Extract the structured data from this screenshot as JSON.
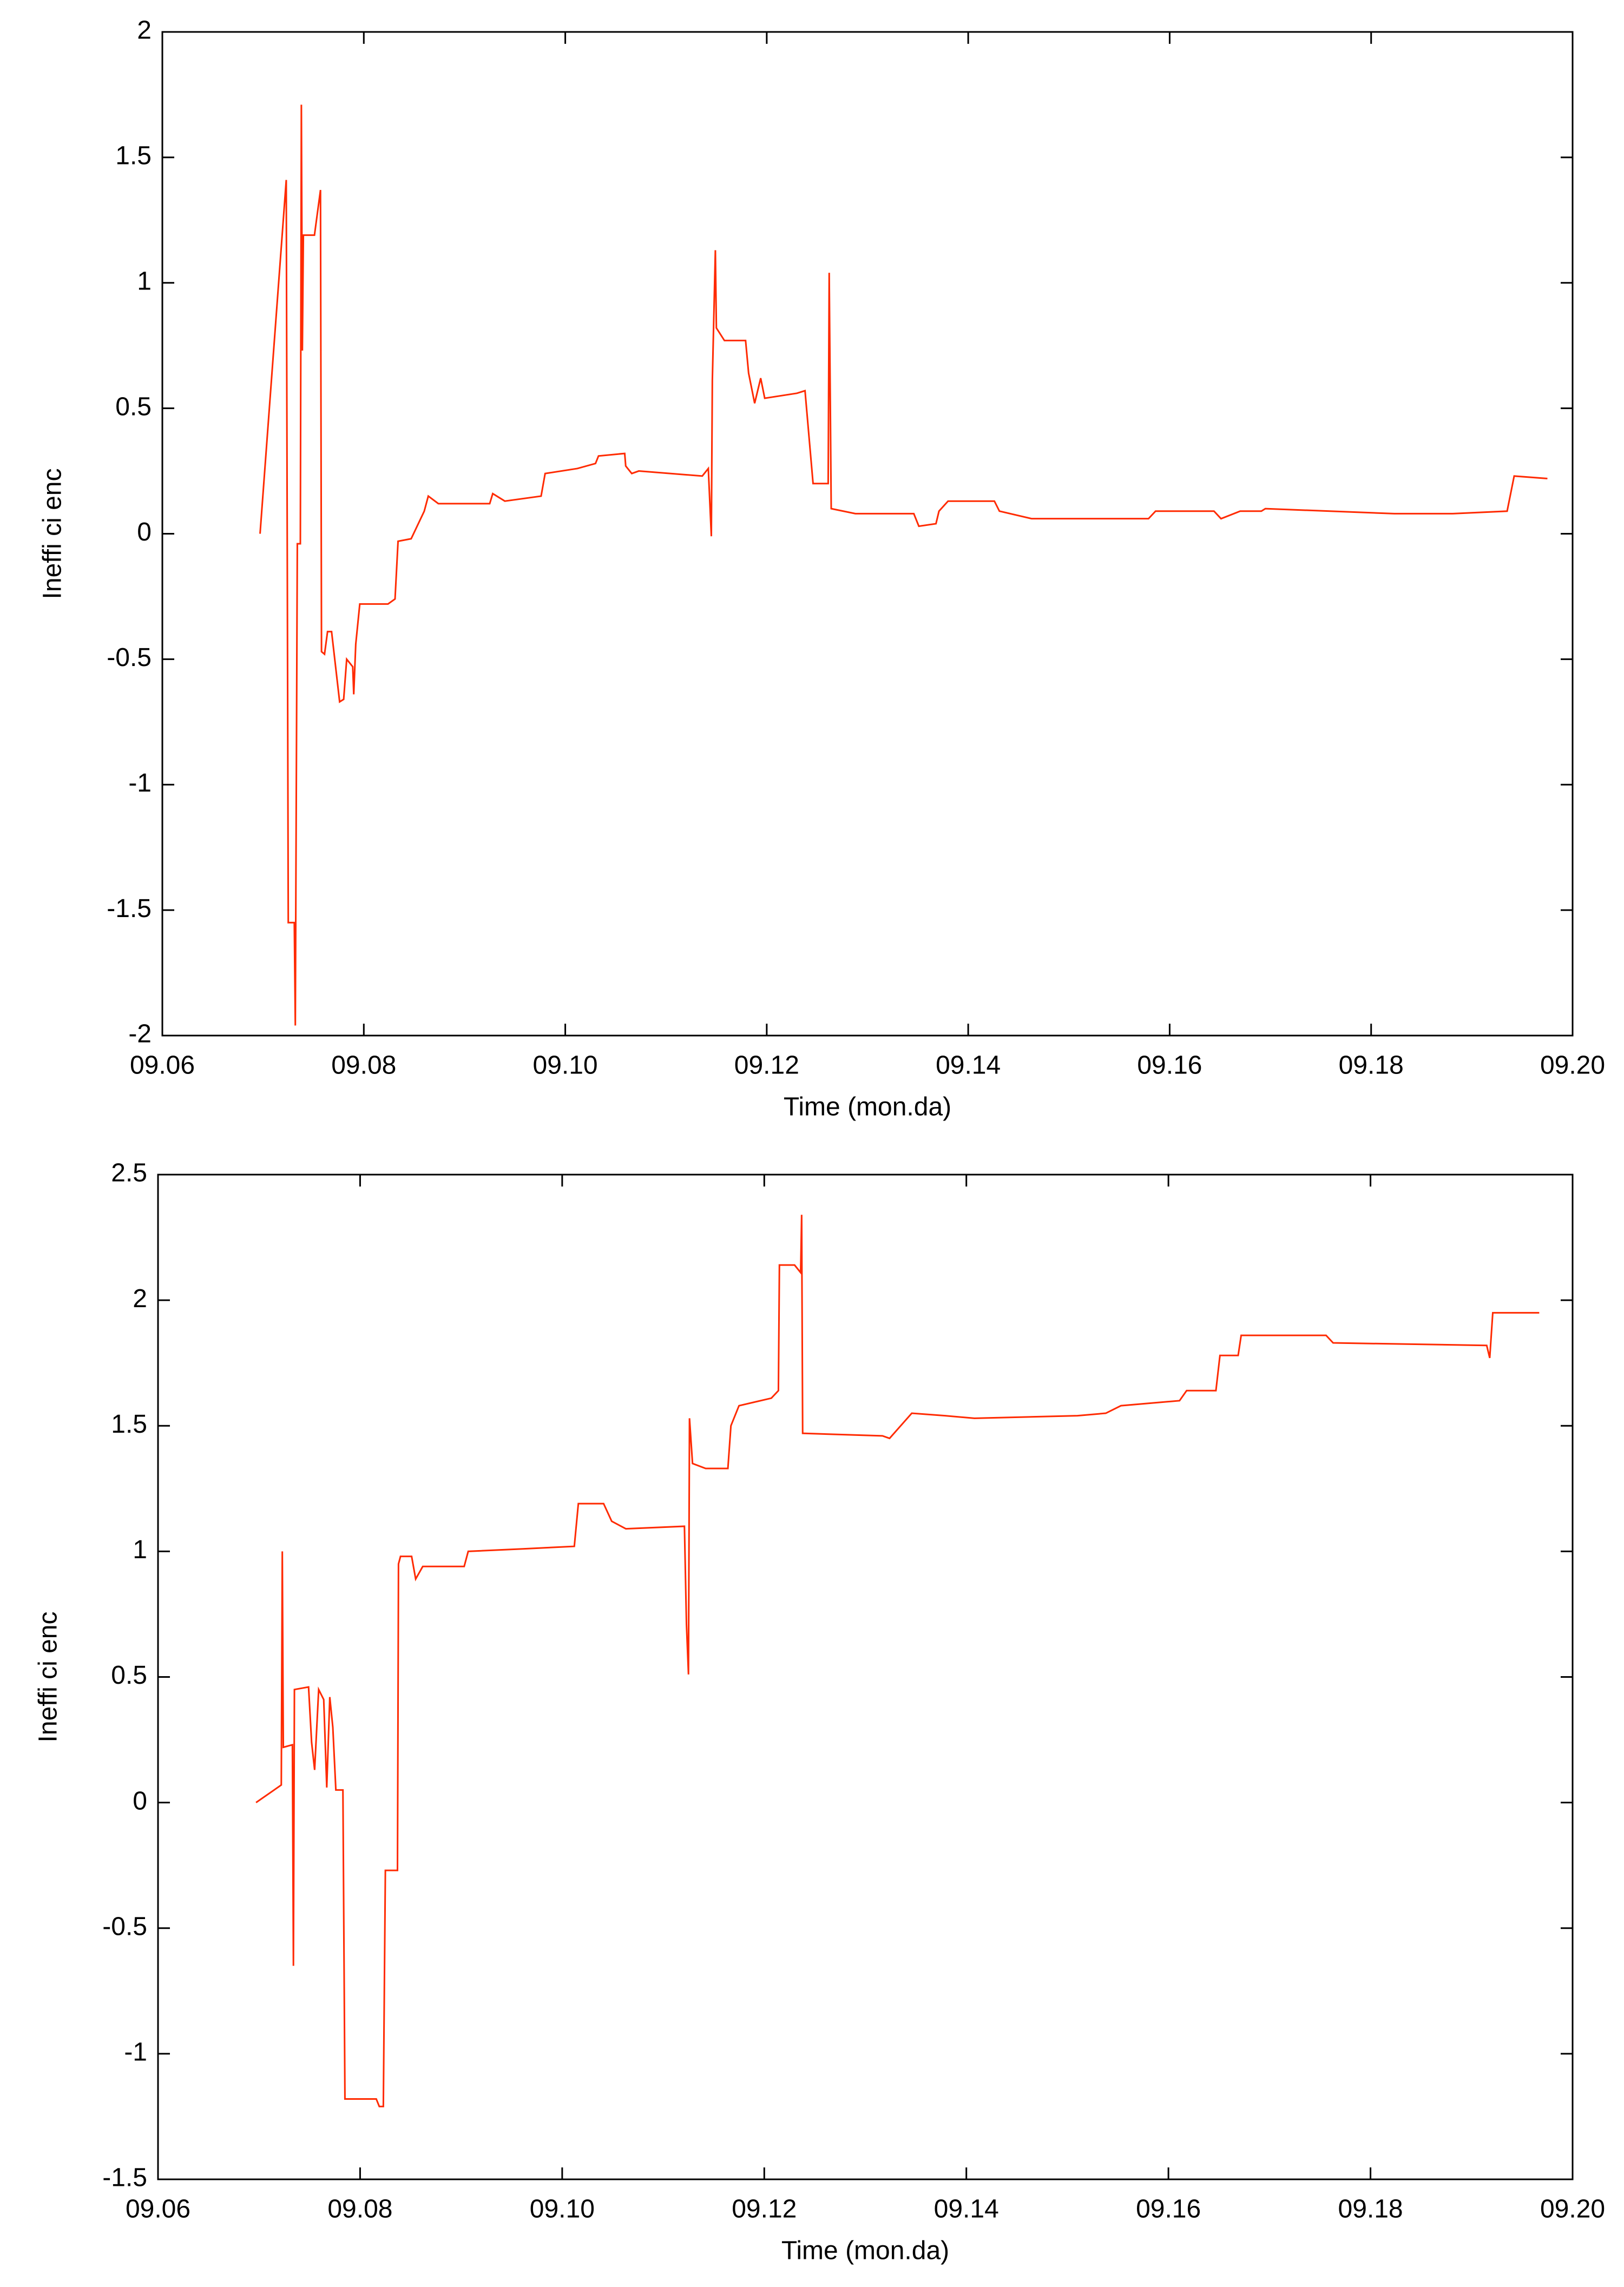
{
  "chart_data": [
    {
      "type": "line",
      "x_label": "Time (mon.da)",
      "y_label": "Ineffi ci enc",
      "xlim": [
        9.06,
        9.2
      ],
      "xticks": [
        {
          "value": 9.06,
          "label": "09.06"
        },
        {
          "value": 9.08,
          "label": "09.08"
        },
        {
          "value": 9.1,
          "label": "09.10"
        },
        {
          "value": 9.12,
          "label": "09.12"
        },
        {
          "value": 9.14,
          "label": "09.14"
        },
        {
          "value": 9.16,
          "label": "09.16"
        },
        {
          "value": 9.18,
          "label": "09.18"
        },
        {
          "value": 9.2,
          "label": "09.20"
        }
      ],
      "ylim": [
        -2,
        2
      ],
      "yticks": [
        -2,
        -1.5,
        -1,
        -0.5,
        0,
        0.5,
        1,
        1.5,
        2
      ],
      "grid": false,
      "series": [
        {
          "color": "#ff2a00",
          "x": [
            9.0697,
            9.0723,
            9.0725,
            9.0731,
            9.0732,
            9.0734,
            9.0737,
            9.0738,
            9.0739,
            9.074,
            9.0751,
            9.0755,
            9.0757,
            9.0758,
            9.0761,
            9.0764,
            9.0768,
            9.0776,
            9.078,
            9.0783,
            9.0789,
            9.079,
            9.0792,
            9.0796,
            9.0824,
            9.0831,
            9.0834,
            9.0847,
            9.086,
            9.0864,
            9.0874,
            9.0925,
            9.0928,
            9.094,
            9.0976,
            9.098,
            9.1012,
            9.103,
            9.1033,
            9.1059,
            9.106,
            9.1066,
            9.1073,
            9.1136,
            9.1142,
            9.1145,
            9.1146,
            9.1149,
            9.115,
            9.1158,
            9.1179,
            9.1182,
            9.1188,
            9.1194,
            9.1198,
            9.123,
            9.1238,
            9.1246,
            9.1261,
            9.1262,
            9.1264,
            9.1288,
            9.1346,
            9.1351,
            9.1368,
            9.1371,
            9.138,
            9.1426,
            9.1431,
            9.1463,
            9.1579,
            9.1586,
            9.1644,
            9.1651,
            9.167,
            9.1691,
            9.1695,
            9.1823,
            9.1881,
            9.1935,
            9.1942,
            9.1975
          ],
          "values": [
            0,
            1.41,
            -1.55,
            -1.55,
            -1.96,
            -0.04,
            -0.04,
            1.71,
            0.73,
            1.19,
            1.19,
            1.31,
            1.37,
            -0.47,
            -0.48,
            -0.39,
            -0.39,
            -0.67,
            -0.66,
            -0.5,
            -0.53,
            -0.64,
            -0.44,
            -0.28,
            -0.28,
            -0.26,
            -0.03,
            -0.02,
            0.09,
            0.15,
            0.12,
            0.12,
            0.16,
            0.13,
            0.15,
            0.24,
            0.26,
            0.28,
            0.31,
            0.32,
            0.27,
            0.24,
            0.25,
            0.23,
            0.26,
            -0.01,
            0.61,
            1.13,
            0.82,
            0.77,
            0.77,
            0.64,
            0.52,
            0.62,
            0.54,
            0.56,
            0.57,
            0.2,
            0.2,
            1.04,
            0.1,
            0.08,
            0.08,
            0.03,
            0.04,
            0.09,
            0.13,
            0.13,
            0.09,
            0.06,
            0.06,
            0.09,
            0.09,
            0.06,
            0.09,
            0.09,
            0.1,
            0.08,
            0.08,
            0.09,
            0.23,
            0.22
          ]
        }
      ]
    },
    {
      "type": "line",
      "x_label": "Time (mon.da)",
      "y_label": "Ineffi ci enc",
      "xlim": [
        9.06,
        9.2
      ],
      "xticks": [
        {
          "value": 9.06,
          "label": "09.06"
        },
        {
          "value": 9.08,
          "label": "09.08"
        },
        {
          "value": 9.1,
          "label": "09.10"
        },
        {
          "value": 9.12,
          "label": "09.12"
        },
        {
          "value": 9.14,
          "label": "09.14"
        },
        {
          "value": 9.16,
          "label": "09.16"
        },
        {
          "value": 9.18,
          "label": "09.18"
        },
        {
          "value": 9.2,
          "label": "09.20"
        }
      ],
      "ylim": [
        -1.5,
        2.5
      ],
      "yticks": [
        -1.5,
        -1,
        -0.5,
        0,
        0.5,
        1,
        1.5,
        2,
        2.5
      ],
      "grid": false,
      "series": [
        {
          "color": "#ff2a00",
          "x": [
            9.0697,
            9.0722,
            9.0723,
            9.0724,
            9.0733,
            9.0734,
            9.0735,
            9.0749,
            9.0752,
            9.0755,
            9.0759,
            9.0764,
            9.0767,
            9.077,
            9.0773,
            9.0776,
            9.0783,
            9.0785,
            9.0816,
            9.0819,
            9.0823,
            9.0825,
            9.0837,
            9.0838,
            9.084,
            9.0851,
            9.0855,
            9.0862,
            9.0903,
            9.0907,
            9.0961,
            9.1012,
            9.1016,
            9.1041,
            9.1049,
            9.1063,
            9.1121,
            9.1123,
            9.1125,
            9.1126,
            9.1129,
            9.1142,
            9.1164,
            9.1167,
            9.1175,
            9.1207,
            9.1214,
            9.1215,
            9.123,
            9.1236,
            9.1237,
            9.1238,
            9.1317,
            9.1324,
            9.1346,
            9.1379,
            9.1408,
            9.151,
            9.1538,
            9.1553,
            9.1611,
            9.1618,
            9.1647,
            9.1651,
            9.1669,
            9.1672,
            9.1756,
            9.1763,
            9.1915,
            9.1918,
            9.1921,
            9.1967
          ],
          "values": [
            0,
            0.07,
            1.0,
            0.22,
            0.23,
            -0.65,
            0.45,
            0.46,
            0.24,
            0.13,
            0.45,
            0.41,
            0.06,
            0.42,
            0.3,
            0.05,
            0.05,
            -1.18,
            -1.18,
            -1.21,
            -1.21,
            -0.27,
            -0.27,
            0.95,
            0.98,
            0.98,
            0.89,
            0.94,
            0.94,
            1.0,
            1.01,
            1.02,
            1.19,
            1.19,
            1.12,
            1.09,
            1.1,
            0.71,
            0.51,
            1.53,
            1.35,
            1.33,
            1.33,
            1.5,
            1.58,
            1.61,
            1.64,
            2.14,
            2.14,
            2.11,
            2.34,
            1.47,
            1.46,
            1.45,
            1.55,
            1.54,
            1.53,
            1.54,
            1.55,
            1.58,
            1.6,
            1.64,
            1.64,
            1.78,
            1.78,
            1.86,
            1.86,
            1.83,
            1.82,
            1.77,
            1.95,
            1.95
          ]
        }
      ]
    }
  ]
}
